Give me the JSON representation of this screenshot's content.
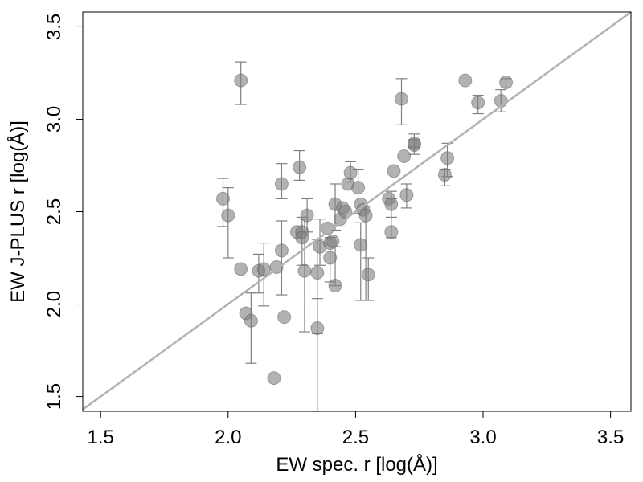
{
  "chart_data": {
    "type": "scatter",
    "xlabel": "EW spec. r [log(Å)]",
    "ylabel": "EW J-PLUS r [log(Å)]",
    "xlim": [
      1.43,
      3.58
    ],
    "ylim": [
      1.42,
      3.58
    ],
    "x_ticks": [
      1.5,
      2.0,
      2.5,
      3.0,
      3.5
    ],
    "y_ticks": [
      1.5,
      2.0,
      2.5,
      3.0,
      3.5
    ],
    "x_tick_labels": [
      "1.5",
      "2.0",
      "2.5",
      "3.0",
      "3.5"
    ],
    "y_tick_labels": [
      "1.5",
      "2.0",
      "2.5",
      "3.0",
      "3.5"
    ],
    "reference_line": "y = x",
    "grid": false,
    "colors": {
      "points": "#7f7f7f",
      "errorbars": "#808080",
      "reference_line": "#b3b3b3"
    },
    "series": [
      {
        "points": [
          {
            "x": 2.05,
            "y": 3.21,
            "err": [
              3.08,
              3.31
            ]
          },
          {
            "x": 1.98,
            "y": 2.57,
            "err": [
              2.42,
              2.68
            ]
          },
          {
            "x": 2.0,
            "y": 2.48,
            "err": [
              2.25,
              2.63
            ]
          },
          {
            "x": 2.05,
            "y": 2.19
          },
          {
            "x": 2.07,
            "y": 1.95
          },
          {
            "x": 2.09,
            "y": 1.91,
            "err": [
              1.68,
              2.06
            ]
          },
          {
            "x": 2.12,
            "y": 2.18,
            "err": [
              2.06,
              2.27
            ]
          },
          {
            "x": 2.14,
            "y": 2.19,
            "err": [
              1.99,
              2.33
            ]
          },
          {
            "x": 2.18,
            "y": 1.6
          },
          {
            "x": 2.19,
            "y": 2.2
          },
          {
            "x": 2.21,
            "y": 2.65,
            "err": [
              2.57,
              2.76
            ]
          },
          {
            "x": 2.21,
            "y": 2.29,
            "err": [
              2.05,
              2.45
            ]
          },
          {
            "x": 2.22,
            "y": 1.93
          },
          {
            "x": 2.27,
            "y": 2.39
          },
          {
            "x": 2.28,
            "y": 2.74,
            "err": [
              2.67,
              2.83
            ]
          },
          {
            "x": 2.29,
            "y": 2.39,
            "err": [
              2.21,
              2.47
            ]
          },
          {
            "x": 2.29,
            "y": 2.36
          },
          {
            "x": 2.3,
            "y": 2.18,
            "err": [
              1.85,
              2.46
            ]
          },
          {
            "x": 2.31,
            "y": 2.48,
            "err": [
              2.39,
              2.57
            ]
          },
          {
            "x": 2.35,
            "y": 2.17,
            "err": [
              1.42,
              2.35
            ]
          },
          {
            "x": 2.35,
            "y": 1.87,
            "err": [
              1.84,
              2.03
            ]
          },
          {
            "x": 2.36,
            "y": 2.31,
            "err": [
              2.21,
              2.46
            ]
          },
          {
            "x": 2.39,
            "y": 2.41
          },
          {
            "x": 2.4,
            "y": 2.25,
            "err": [
              2.12,
              2.36
            ]
          },
          {
            "x": 2.4,
            "y": 2.33
          },
          {
            "x": 2.41,
            "y": 2.34
          },
          {
            "x": 2.42,
            "y": 2.1,
            "err": [
              2.1,
              2.31
            ]
          },
          {
            "x": 2.42,
            "y": 2.54,
            "err": [
              2.4,
              2.65
            ]
          },
          {
            "x": 2.44,
            "y": 2.46
          },
          {
            "x": 2.45,
            "y": 2.52
          },
          {
            "x": 2.46,
            "y": 2.5
          },
          {
            "x": 2.47,
            "y": 2.65
          },
          {
            "x": 2.48,
            "y": 2.71,
            "err": [
              2.66,
              2.77
            ]
          },
          {
            "x": 2.51,
            "y": 2.63,
            "err": [
              2.49,
              2.73
            ]
          },
          {
            "x": 2.52,
            "y": 2.54
          },
          {
            "x": 2.52,
            "y": 2.32,
            "err": [
              2.02,
              2.44
            ]
          },
          {
            "x": 2.53,
            "y": 2.51
          },
          {
            "x": 2.54,
            "y": 2.48,
            "err": [
              2.02,
              2.53
            ]
          },
          {
            "x": 2.55,
            "y": 2.16,
            "err": [
              2.02,
              2.25
            ]
          },
          {
            "x": 2.63,
            "y": 2.57
          },
          {
            "x": 2.64,
            "y": 2.39,
            "err": [
              2.36,
              2.57
            ]
          },
          {
            "x": 2.64,
            "y": 2.54,
            "err": [
              2.47,
              2.61
            ]
          },
          {
            "x": 2.65,
            "y": 2.72
          },
          {
            "x": 2.68,
            "y": 3.11,
            "err": [
              2.97,
              3.22
            ]
          },
          {
            "x": 2.69,
            "y": 2.8
          },
          {
            "x": 2.7,
            "y": 2.59,
            "err": [
              2.52,
              2.65
            ]
          },
          {
            "x": 2.73,
            "y": 2.86,
            "err": [
              2.81,
              2.89
            ]
          },
          {
            "x": 2.73,
            "y": 2.87,
            "err": [
              2.85,
              2.92
            ]
          },
          {
            "x": 2.85,
            "y": 2.7,
            "err": [
              2.64,
              2.73
            ]
          },
          {
            "x": 2.86,
            "y": 2.79,
            "err": [
              2.69,
              2.87
            ]
          },
          {
            "x": 2.93,
            "y": 3.21
          },
          {
            "x": 2.98,
            "y": 3.09,
            "err": [
              3.03,
              3.13
            ]
          },
          {
            "x": 3.07,
            "y": 3.1,
            "err": [
              3.04,
              3.16
            ]
          },
          {
            "x": 3.09,
            "y": 3.2,
            "err": [
              3.17,
              3.22
            ]
          }
        ]
      }
    ]
  }
}
